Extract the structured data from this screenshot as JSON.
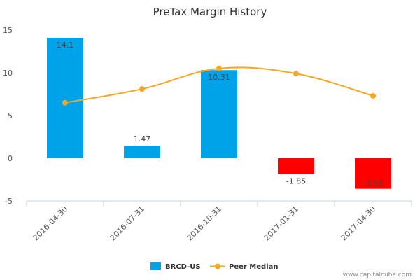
{
  "chart_data": {
    "type": "bar",
    "title": "PreTax Margin History",
    "categories": [
      "2016-04-30",
      "2016-07-31",
      "2016-10-31",
      "2017-01-31",
      "2017-04-30"
    ],
    "series": [
      {
        "name": "BRCD-US",
        "type": "bar",
        "values": [
          14.1,
          1.47,
          10.31,
          -1.85,
          -3.58
        ],
        "labels": [
          "14.1",
          "1.47",
          "10.31",
          "-1.85",
          "-3.58"
        ]
      },
      {
        "name": "Peer Median",
        "type": "line",
        "values": [
          6.5,
          8.1,
          10.5,
          9.9,
          7.3
        ]
      }
    ],
    "ylim": [
      -5,
      15
    ],
    "yticks": [
      "15",
      "10",
      "5",
      "0",
      "-5"
    ],
    "grid": false,
    "legend_position": "bottom"
  },
  "colors": {
    "bar_positive": "#00a2e8",
    "bar_negative": "#ff0000",
    "line": "#f5a623",
    "axis": "#c8d3e0"
  },
  "credit": "www.capitalcube.com"
}
